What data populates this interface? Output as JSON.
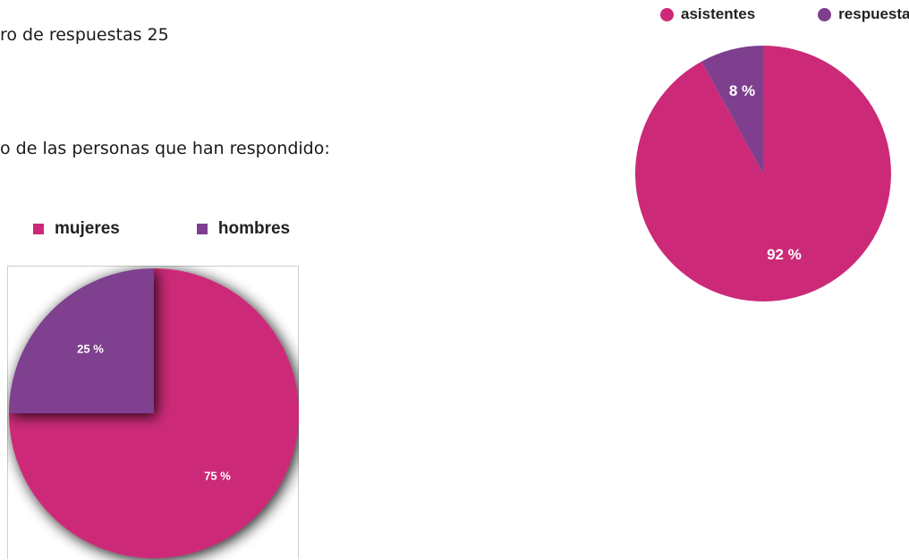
{
  "text": {
    "line1": "ro de respuestas 25",
    "line2": "o de las personas que han respondido:"
  },
  "chart_data": [
    {
      "type": "pie",
      "legend_position": "top",
      "legend": [
        "mujeres",
        "hombres"
      ],
      "series": [
        {
          "name": "mujeres",
          "value": 75,
          "label": "75 %",
          "color": "#CC2A78"
        },
        {
          "name": "hombres",
          "value": 25,
          "label": "25 %",
          "color": "#7E3F8F"
        }
      ]
    },
    {
      "type": "pie",
      "legend_position": "top",
      "legend": [
        "asistentes",
        "respuestas"
      ],
      "series": [
        {
          "name": "asistentes",
          "value": 92,
          "label": "92 %",
          "color": "#CC2A78"
        },
        {
          "name": "respuestas",
          "value": 8,
          "label": "8 %",
          "color": "#7E3F8F"
        }
      ]
    }
  ]
}
